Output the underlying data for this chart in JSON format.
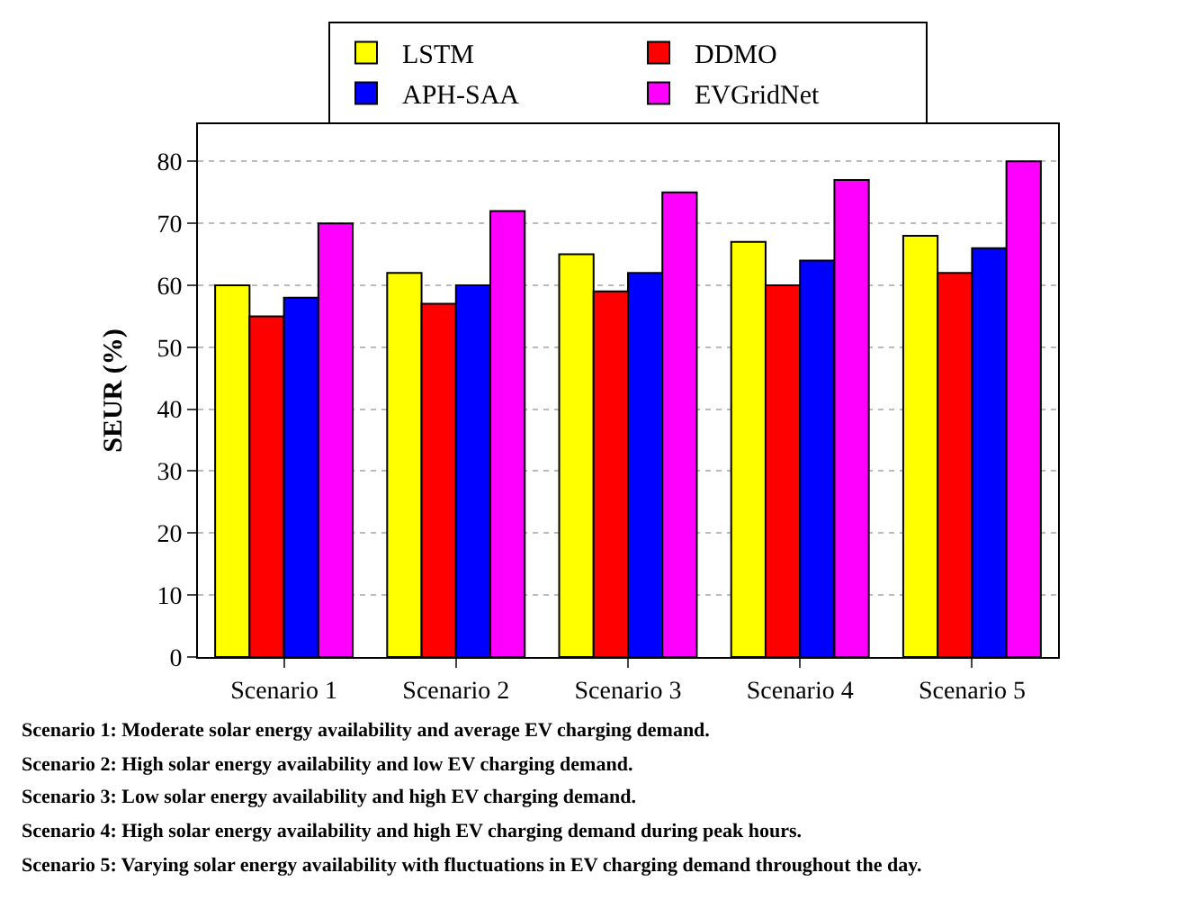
{
  "chart_data": {
    "type": "bar",
    "ylabel": "SEUR (%)",
    "categories": [
      "Scenario 1",
      "Scenario 2",
      "Scenario 3",
      "Scenario 4",
      "Scenario 5"
    ],
    "series": [
      {
        "name": "LSTM",
        "color": "#ffff00",
        "values": [
          60,
          62,
          65,
          67,
          68
        ]
      },
      {
        "name": "DDMO",
        "color": "#ff0000",
        "values": [
          55,
          57,
          59,
          60,
          62
        ]
      },
      {
        "name": "APH-SAA",
        "color": "#0000ff",
        "values": [
          58,
          60,
          62,
          64,
          66
        ]
      },
      {
        "name": "EVGridNet",
        "color": "#ff00ff",
        "values": [
          70,
          72,
          75,
          77,
          80
        ]
      }
    ],
    "ylim": [
      0,
      86
    ],
    "yticks": [
      0,
      10,
      20,
      30,
      40,
      50,
      60,
      70,
      80
    ],
    "grid": "y",
    "legend": "top",
    "annotations": [
      "Scenario 1: Moderate solar energy availability and average EV charging demand.",
      "Scenario 2: High solar energy availability and low EV charging demand.",
      "Scenario 3: Low solar energy availability and high EV charging demand.",
      "Scenario 4: High solar energy availability and high EV charging demand during peak hours.",
      "Scenario 5: Varying solar energy availability with fluctuations in EV charging demand throughout the day."
    ]
  }
}
